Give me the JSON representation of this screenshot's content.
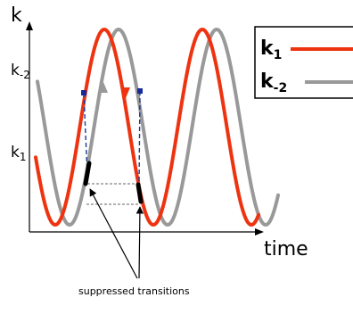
{
  "axes": {
    "y_label": "k",
    "x_label": "time"
  },
  "curve_labels": {
    "k1": {
      "base": "k",
      "sub": "1"
    },
    "k2": {
      "base": "k",
      "sub": "-2"
    }
  },
  "legend": [
    {
      "base": "k",
      "sub": "1",
      "color": "#ee3311"
    },
    {
      "base": "k",
      "sub": "-2",
      "color": "#999999"
    }
  ],
  "annotation": "suppressed transitions",
  "colors": {
    "k1": "#ee3311",
    "k2": "#999999",
    "marker_top": "#1a2a9a",
    "connector": "#1a3a9a",
    "transition": "#000000"
  }
}
